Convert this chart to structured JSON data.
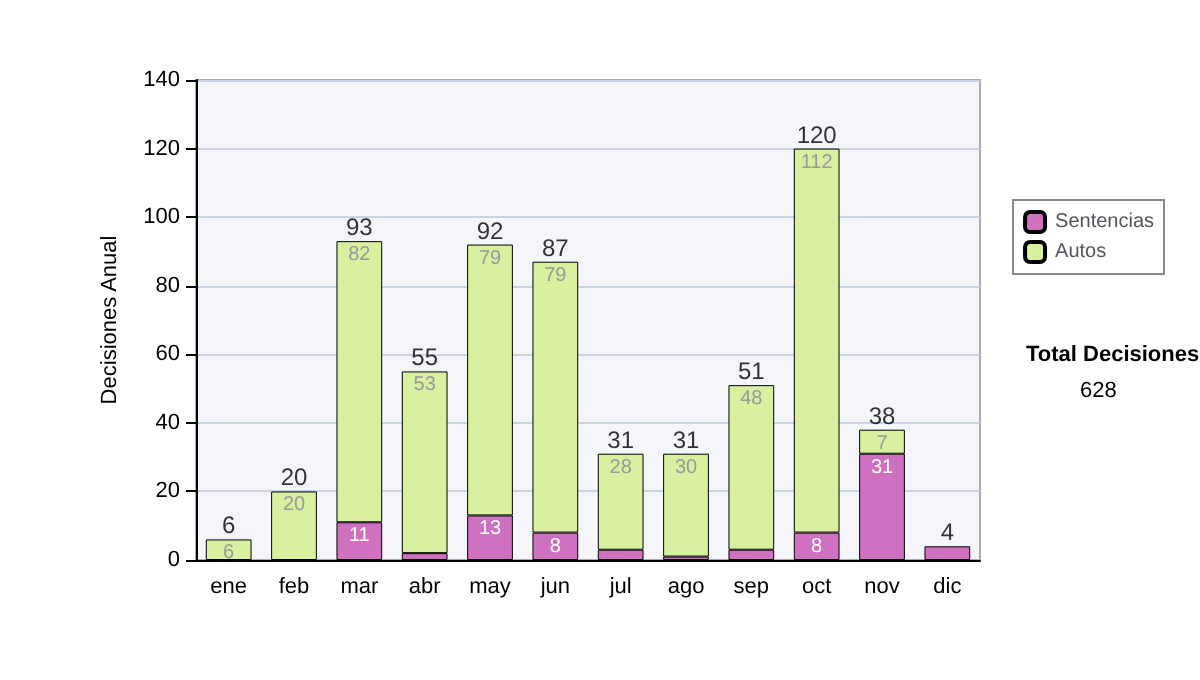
{
  "chart_data": {
    "type": "bar",
    "stacked": true,
    "ylabel": "Decisiones Anual",
    "categories": [
      "ene",
      "feb",
      "mar",
      "abr",
      "may",
      "jun",
      "jul",
      "ago",
      "sep",
      "oct",
      "nov",
      "dic"
    ],
    "series": [
      {
        "name": "Sentencias",
        "color": "#d070c0",
        "values": [
          0,
          0,
          11,
          2,
          13,
          8,
          3,
          1,
          3,
          8,
          31,
          4
        ],
        "value_labels": [
          null,
          null,
          "11",
          null,
          "13",
          "8",
          null,
          null,
          null,
          "8",
          "31",
          null
        ]
      },
      {
        "name": "Autos",
        "color": "#d8f0a0",
        "values": [
          6,
          20,
          82,
          53,
          79,
          79,
          28,
          30,
          48,
          112,
          7,
          0
        ],
        "value_labels": [
          "6",
          "20",
          "82",
          "53",
          "79",
          "79",
          "28",
          "30",
          "48",
          "112",
          "7",
          null
        ]
      }
    ],
    "totals": [
      "6",
      "20",
      "93",
      "55",
      "92",
      "87",
      "31",
      "31",
      "51",
      "120",
      "38",
      "4"
    ],
    "ylim": [
      0,
      140
    ],
    "yticks": [
      0,
      20,
      40,
      60,
      80,
      100,
      120,
      140
    ],
    "grid": "y",
    "legend": "right",
    "annotations": [
      "Total Decisiones",
      "628"
    ]
  }
}
